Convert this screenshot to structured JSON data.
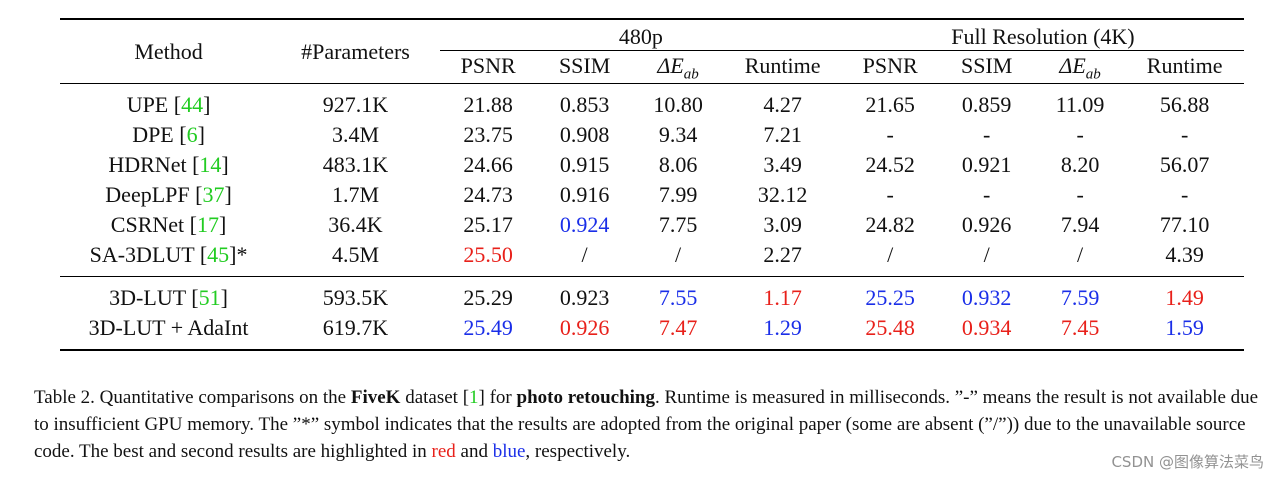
{
  "table": {
    "header": {
      "method": "Method",
      "params": "#Parameters",
      "group_480p": "480p",
      "group_full": "Full Resolution (4K)",
      "psnr": "PSNR",
      "ssim": "SSIM",
      "de_symbol": "ΔE",
      "de_sub": "ab",
      "runtime": "Runtime"
    },
    "rows": [
      {
        "method": "UPE",
        "ref": "44",
        "suffix": "",
        "params": "927.1K",
        "p480": [
          "21.88",
          "0.853",
          "10.80",
          "4.27"
        ],
        "full": [
          "21.65",
          "0.859",
          "11.09",
          "56.88"
        ]
      },
      {
        "method": "DPE",
        "ref": "6",
        "suffix": "",
        "params": "3.4M",
        "p480": [
          "23.75",
          "0.908",
          "9.34",
          "7.21"
        ],
        "full": [
          "-",
          "-",
          "-",
          "-"
        ]
      },
      {
        "method": "HDRNet",
        "ref": "14",
        "suffix": "",
        "params": "483.1K",
        "p480": [
          "24.66",
          "0.915",
          "8.06",
          "3.49"
        ],
        "full": [
          "24.52",
          "0.921",
          "8.20",
          "56.07"
        ]
      },
      {
        "method": "DeepLPF",
        "ref": "37",
        "suffix": "",
        "params": "1.7M",
        "p480": [
          "24.73",
          "0.916",
          "7.99",
          "32.12"
        ],
        "full": [
          "-",
          "-",
          "-",
          "-"
        ]
      },
      {
        "method": "CSRNet",
        "ref": "17",
        "suffix": "",
        "params": "36.4K",
        "p480": [
          "25.17",
          "0.924",
          "7.75",
          "3.09"
        ],
        "full": [
          "24.82",
          "0.926",
          "7.94",
          "77.10"
        ]
      },
      {
        "method": "SA-3DLUT",
        "ref": "45",
        "suffix": "*",
        "params": "4.5M",
        "p480": [
          "25.50",
          "/",
          "/",
          "2.27"
        ],
        "full": [
          "/",
          "/",
          "/",
          "4.39"
        ]
      },
      {
        "method": "3D-LUT",
        "ref": "51",
        "suffix": "",
        "params": "593.5K",
        "p480": [
          "25.29",
          "0.923",
          "7.55",
          "1.17"
        ],
        "full": [
          "25.25",
          "0.932",
          "7.59",
          "1.49"
        ]
      },
      {
        "method": "3D-LUT + AdaInt",
        "ref": "",
        "suffix": "",
        "params": "619.7K",
        "p480": [
          "25.49",
          "0.926",
          "7.47",
          "1.29"
        ],
        "full": [
          "25.48",
          "0.934",
          "7.45",
          "1.59"
        ]
      }
    ]
  },
  "highlight_colors": {
    "best": "#e8201a",
    "second": "#1a2ee8",
    "ref_link": "#22cc22"
  },
  "caption": {
    "t1": "Table 2. Quantitative comparisons on the ",
    "b1": "FiveK",
    "t2": " dataset  [",
    "ref": "1",
    "t3": "] for ",
    "b2": "photo retouching",
    "t4": ". Runtime is measured in milliseconds. ”-” means the result is not available due to insufficient GPU memory. The ”*” symbol indicates that the results are adopted from the original paper (some are absent (”/”)) due to the unavailable source code. The best and second results are highlighted in ",
    "red_word": "red",
    "and_word": " and ",
    "blue_word": "blue",
    "t5": ", respectively."
  },
  "watermark": "CSDN @图像算法菜鸟"
}
